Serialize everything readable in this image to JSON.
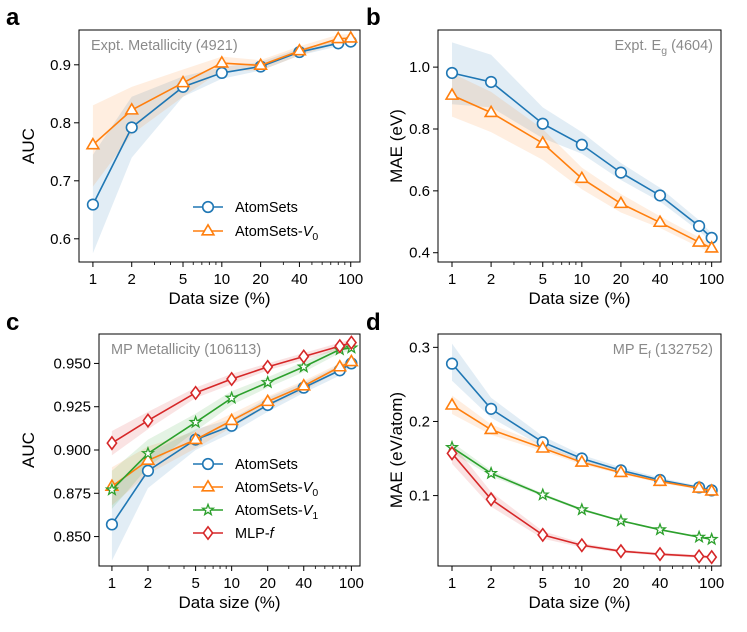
{
  "colors": {
    "atomsets": "#1f77b4",
    "v0": "#ff7f0e",
    "v1": "#2ca02c",
    "mlpf": "#d62728",
    "annot": "#8a8a8a"
  },
  "chart_data": [
    {
      "panel": "a",
      "type": "line",
      "title": "Expt. Metallicity (4921)",
      "xlabel": "Data size (%)",
      "ylabel": "AUC",
      "xscale": "log",
      "xlim": [
        0.78,
        118
      ],
      "ylim": [
        0.56,
        0.96
      ],
      "xticks": [
        1,
        2,
        5,
        10,
        20,
        40,
        100
      ],
      "xticklabels": [
        "1",
        "2",
        "5",
        "10",
        "20",
        "40",
        "100"
      ],
      "yticks": [
        0.6,
        0.7,
        0.8,
        0.9
      ],
      "yticklabels": [
        "0.6",
        "0.7",
        "0.8",
        "0.9"
      ],
      "legend": "lower-right",
      "series": [
        {
          "name": "AtomSets",
          "marker": "circle",
          "color": "atomsets",
          "x": [
            1,
            2,
            5,
            10,
            20,
            40,
            80,
            100
          ],
          "y": [
            0.659,
            0.792,
            0.862,
            0.886,
            0.897,
            0.922,
            0.937,
            0.94
          ],
          "lo": [
            0.575,
            0.74,
            0.845,
            0.876,
            0.89,
            0.916,
            0.932,
            0.936
          ],
          "hi": [
            0.745,
            0.845,
            0.88,
            0.896,
            0.905,
            0.928,
            0.942,
            0.944
          ]
        },
        {
          "name": "AtomSets-V0",
          "marker": "triangle",
          "color": "v0",
          "x": [
            1,
            2,
            5,
            10,
            20,
            40,
            80,
            100
          ],
          "y": [
            0.762,
            0.822,
            0.869,
            0.903,
            0.899,
            0.924,
            0.945,
            0.946
          ],
          "lo": [
            0.69,
            0.78,
            0.845,
            0.89,
            0.89,
            0.916,
            0.937,
            0.939
          ],
          "hi": [
            0.83,
            0.862,
            0.892,
            0.914,
            0.908,
            0.932,
            0.952,
            0.953
          ]
        }
      ]
    },
    {
      "panel": "b",
      "type": "line",
      "title": "Expt. E_g (4604)",
      "title_main": "Expt. E",
      "title_sub": "g",
      "title_tail": " (4604)",
      "xlabel": "Data size (%)",
      "ylabel": "MAE (eV)",
      "xscale": "log",
      "xlim": [
        0.78,
        118
      ],
      "ylim": [
        0.37,
        1.12
      ],
      "xticks": [
        1,
        2,
        5,
        10,
        20,
        40,
        100
      ],
      "xticklabels": [
        "1",
        "2",
        "5",
        "10",
        "20",
        "40",
        "100"
      ],
      "yticks": [
        0.4,
        0.6,
        0.8,
        1.0
      ],
      "yticklabels": [
        "0.4",
        "0.6",
        "0.8",
        "1.0"
      ],
      "series": [
        {
          "name": "AtomSets",
          "marker": "circle",
          "color": "atomsets",
          "x": [
            1,
            2,
            5,
            10,
            20,
            40,
            80,
            100
          ],
          "y": [
            0.981,
            0.952,
            0.817,
            0.749,
            0.659,
            0.585,
            0.486,
            0.448
          ],
          "lo": [
            0.88,
            0.87,
            0.77,
            0.72,
            0.635,
            0.565,
            0.47,
            0.435
          ],
          "hi": [
            1.08,
            1.04,
            0.87,
            0.79,
            0.69,
            0.61,
            0.505,
            0.462
          ]
        },
        {
          "name": "AtomSets-V0",
          "marker": "triangle",
          "color": "v0",
          "x": [
            1,
            2,
            5,
            10,
            20,
            40,
            80,
            100
          ],
          "y": [
            0.909,
            0.853,
            0.754,
            0.64,
            0.559,
            0.498,
            0.434,
            0.415
          ],
          "lo": [
            0.84,
            0.79,
            0.7,
            0.605,
            0.53,
            0.48,
            0.418,
            0.4
          ],
          "hi": [
            0.98,
            0.92,
            0.8,
            0.675,
            0.59,
            0.518,
            0.45,
            0.43
          ]
        }
      ]
    },
    {
      "panel": "c",
      "type": "line",
      "title": "MP Metallicity (106113)",
      "xlabel": "Data size (%)",
      "ylabel": "AUC",
      "xscale": "log",
      "xlim": [
        0.78,
        118
      ],
      "ylim": [
        0.833,
        0.967
      ],
      "xticks": [
        1,
        2,
        5,
        10,
        20,
        40,
        100
      ],
      "xticklabels": [
        "1",
        "2",
        "5",
        "10",
        "20",
        "40",
        "100"
      ],
      "yticks": [
        0.85,
        0.875,
        0.9,
        0.925,
        0.95
      ],
      "yticklabels": [
        "0.850",
        "0.875",
        "0.900",
        "0.925",
        "0.950"
      ],
      "legend": "lower-right",
      "series": [
        {
          "name": "AtomSets",
          "marker": "circle",
          "color": "atomsets",
          "x": [
            1,
            2,
            5,
            10,
            20,
            40,
            80,
            100
          ],
          "y": [
            0.857,
            0.888,
            0.906,
            0.914,
            0.926,
            0.936,
            0.946,
            0.95
          ],
          "lo": [
            0.836,
            0.878,
            0.9,
            0.91,
            0.922,
            0.933,
            0.943,
            0.948
          ],
          "hi": [
            0.878,
            0.898,
            0.912,
            0.918,
            0.93,
            0.939,
            0.949,
            0.952
          ]
        },
        {
          "name": "AtomSets-V0",
          "marker": "triangle",
          "color": "v0",
          "x": [
            1,
            2,
            5,
            10,
            20,
            40,
            80,
            100
          ],
          "y": [
            0.879,
            0.894,
            0.906,
            0.917,
            0.928,
            0.937,
            0.948,
            0.951
          ],
          "lo": [
            0.868,
            0.886,
            0.901,
            0.913,
            0.925,
            0.934,
            0.946,
            0.949
          ],
          "hi": [
            0.89,
            0.902,
            0.911,
            0.921,
            0.931,
            0.94,
            0.95,
            0.953
          ]
        },
        {
          "name": "AtomSets-V1",
          "marker": "star",
          "color": "v1",
          "x": [
            1,
            2,
            5,
            10,
            20,
            40,
            80,
            100
          ],
          "y": [
            0.877,
            0.898,
            0.916,
            0.93,
            0.939,
            0.948,
            0.958,
            0.959
          ],
          "lo": [
            0.866,
            0.89,
            0.911,
            0.926,
            0.936,
            0.945,
            0.956,
            0.957
          ],
          "hi": [
            0.888,
            0.906,
            0.921,
            0.934,
            0.942,
            0.951,
            0.96,
            0.961
          ]
        },
        {
          "name": "MLP-f",
          "marker": "diamond",
          "color": "mlpf",
          "x": [
            1,
            2,
            5,
            10,
            20,
            40,
            80,
            100
          ],
          "y": [
            0.904,
            0.917,
            0.933,
            0.941,
            0.948,
            0.954,
            0.96,
            0.962
          ],
          "lo": [
            0.897,
            0.912,
            0.93,
            0.938,
            0.946,
            0.952,
            0.958,
            0.96
          ],
          "hi": [
            0.911,
            0.922,
            0.936,
            0.944,
            0.95,
            0.956,
            0.962,
            0.964
          ]
        }
      ]
    },
    {
      "panel": "d",
      "type": "line",
      "title": "MP E_f (132752)",
      "title_main": "MP E",
      "title_sub": "f",
      "title_tail": " (132752)",
      "xlabel": "Data size (%)",
      "ylabel": "MAE (eV/atom)",
      "xscale": "log",
      "xlim": [
        0.78,
        118
      ],
      "ylim": [
        0.005,
        0.318
      ],
      "xticks": [
        1,
        2,
        5,
        10,
        20,
        40,
        100
      ],
      "xticklabels": [
        "1",
        "2",
        "5",
        "10",
        "20",
        "40",
        "100"
      ],
      "yticks": [
        0.1,
        0.2,
        0.3
      ],
      "yticklabels": [
        "0.1",
        "0.2",
        "0.3"
      ],
      "series": [
        {
          "name": "AtomSets",
          "marker": "circle",
          "color": "atomsets",
          "x": [
            1,
            2,
            5,
            10,
            20,
            40,
            80,
            100
          ],
          "y": [
            0.278,
            0.217,
            0.172,
            0.15,
            0.134,
            0.121,
            0.111,
            0.107
          ],
          "lo": [
            0.255,
            0.205,
            0.166,
            0.146,
            0.131,
            0.119,
            0.109,
            0.105
          ],
          "hi": [
            0.305,
            0.232,
            0.18,
            0.155,
            0.138,
            0.124,
            0.113,
            0.109
          ]
        },
        {
          "name": "AtomSets-V0",
          "marker": "triangle",
          "color": "v0",
          "x": [
            1,
            2,
            5,
            10,
            20,
            40,
            80,
            100
          ],
          "y": [
            0.222,
            0.189,
            0.164,
            0.145,
            0.131,
            0.119,
            0.11,
            0.106
          ],
          "lo": [
            0.21,
            0.182,
            0.16,
            0.142,
            0.129,
            0.117,
            0.108,
            0.104
          ],
          "hi": [
            0.235,
            0.196,
            0.169,
            0.148,
            0.134,
            0.121,
            0.112,
            0.108
          ]
        },
        {
          "name": "AtomSets-V1",
          "marker": "star",
          "color": "v1",
          "x": [
            1,
            2,
            5,
            10,
            20,
            40,
            80,
            100
          ],
          "y": [
            0.165,
            0.13,
            0.101,
            0.081,
            0.066,
            0.054,
            0.044,
            0.041
          ],
          "lo": [
            0.158,
            0.126,
            0.099,
            0.079,
            0.065,
            0.053,
            0.043,
            0.04
          ],
          "hi": [
            0.172,
            0.134,
            0.103,
            0.083,
            0.067,
            0.055,
            0.045,
            0.042
          ]
        },
        {
          "name": "MLP-f",
          "marker": "diamond",
          "color": "mlpf",
          "x": [
            1,
            2,
            5,
            10,
            20,
            40,
            80,
            100
          ],
          "y": [
            0.157,
            0.095,
            0.047,
            0.033,
            0.025,
            0.021,
            0.018,
            0.017
          ],
          "lo": [
            0.143,
            0.085,
            0.042,
            0.03,
            0.023,
            0.019,
            0.016,
            0.015
          ],
          "hi": [
            0.171,
            0.105,
            0.052,
            0.036,
            0.027,
            0.023,
            0.02,
            0.019
          ]
        }
      ]
    }
  ],
  "legends": {
    "a": [
      "AtomSets",
      "AtomSets-V0"
    ],
    "c": [
      "AtomSets",
      "AtomSets-V0",
      "AtomSets-V1",
      "MLP-f"
    ]
  }
}
